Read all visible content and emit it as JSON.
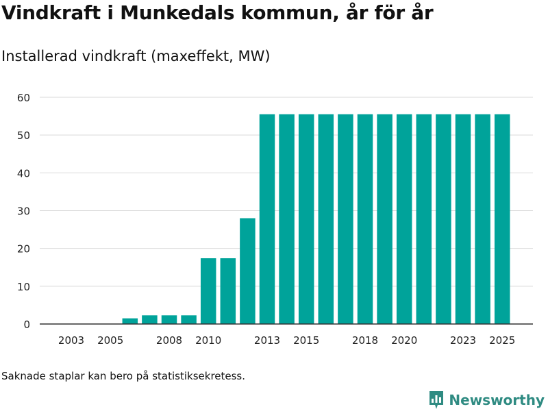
{
  "title": "Vindkraft i Munkedals kommun, år för år",
  "subtitle": "Installerad vindkraft (maxeffekt, MW)",
  "footnote": "Saknade staplar kan bero på statistiksekretess.",
  "brand": {
    "name": "Newsworthy",
    "icon": "newsworthy-logo-icon"
  },
  "colors": {
    "bar": "#00a39a",
    "grid": "#d9d9d9",
    "axis": "#333333",
    "brand": "#2f8b82"
  },
  "chart_data": {
    "type": "bar",
    "categories": [
      "2003",
      "2004",
      "2005",
      "2006",
      "2007",
      "2008",
      "2009",
      "2010",
      "2011",
      "2012",
      "2013",
      "2014",
      "2015",
      "2016",
      "2017",
      "2018",
      "2019",
      "2020",
      "2021",
      "2022",
      "2023",
      "2024",
      "2025"
    ],
    "values": [
      0,
      0,
      0,
      1.5,
      2.3,
      2.3,
      2.3,
      17.4,
      17.4,
      28,
      55.5,
      55.5,
      55.5,
      55.5,
      55.5,
      55.5,
      55.5,
      55.5,
      55.5,
      55.5,
      55.5,
      55.5,
      55.5
    ],
    "xticks": [
      "2003",
      "2005",
      "2008",
      "2010",
      "2013",
      "2015",
      "2018",
      "2020",
      "2023",
      "2025"
    ],
    "yticks": [
      0,
      10,
      20,
      30,
      40,
      50,
      60
    ],
    "ylim": [
      0,
      60
    ],
    "xlabel": "",
    "ylabel": "",
    "grid": true
  }
}
